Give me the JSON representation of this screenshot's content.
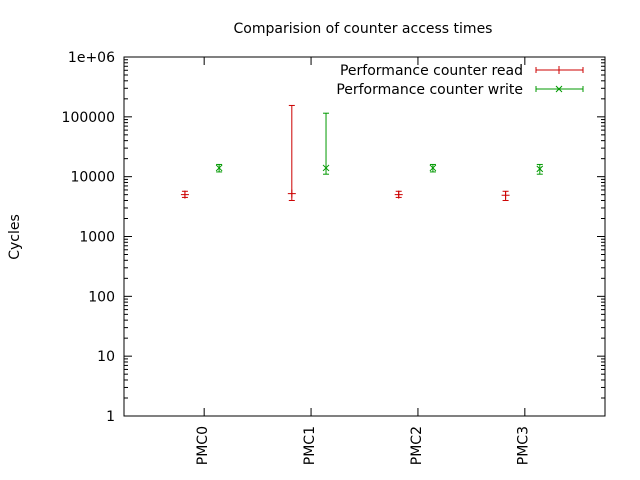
{
  "chart_data": {
    "type": "errorbar",
    "title": "Comparision of counter access times",
    "xlabel": "",
    "ylabel": "Cycles",
    "y_scale": "log",
    "ylim": [
      1,
      1000000
    ],
    "y_ticks": [
      1,
      10,
      100,
      1000,
      10000,
      100000,
      1000000
    ],
    "y_tick_labels": [
      "1",
      "10",
      "100",
      "1000",
      "10000",
      "100000",
      "1e+06"
    ],
    "categories": [
      "PMC0",
      "PMC1",
      "PMC2",
      "PMC3"
    ],
    "grid": false,
    "legend_position": "top-right",
    "series": [
      {
        "name": "Performance counter read",
        "color": "#cc0000",
        "marker": "plus",
        "points": [
          {
            "category": "PMC0",
            "value": 5000,
            "low": 4500,
            "high": 5700
          },
          {
            "category": "PMC1",
            "value": 5200,
            "low": 4000,
            "high": 155000
          },
          {
            "category": "PMC2",
            "value": 5000,
            "low": 4500,
            "high": 5700
          },
          {
            "category": "PMC3",
            "value": 4900,
            "low": 4000,
            "high": 5700
          }
        ]
      },
      {
        "name": "Performance counter write",
        "color": "#009900",
        "marker": "cross",
        "points": [
          {
            "category": "PMC0",
            "value": 14000,
            "low": 12000,
            "high": 16000
          },
          {
            "category": "PMC1",
            "value": 14000,
            "low": 11000,
            "high": 115000
          },
          {
            "category": "PMC2",
            "value": 14000,
            "low": 12000,
            "high": 16000
          },
          {
            "category": "PMC3",
            "value": 13500,
            "low": 11000,
            "high": 16000
          }
        ]
      }
    ]
  }
}
